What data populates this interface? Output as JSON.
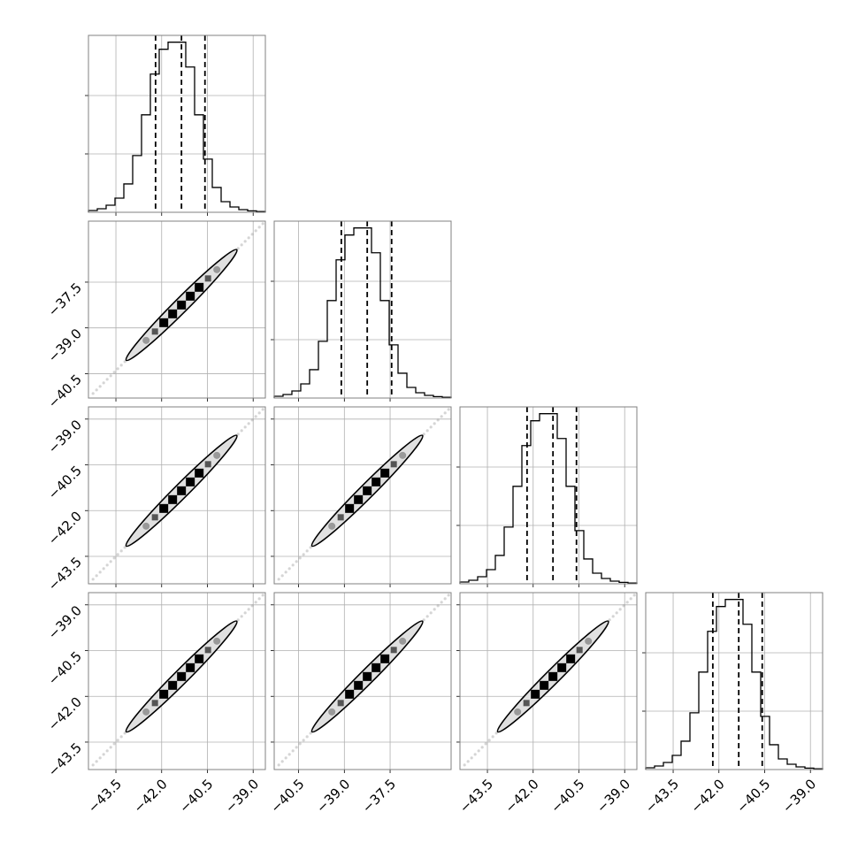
{
  "chart_data": {
    "type": "corner",
    "grid": true,
    "colors": {
      "line": "#000000",
      "grid": "#b0b0b0",
      "frame": "#808080",
      "contour_fill": "#e0e0e0",
      "samples": "#888888"
    },
    "params": [
      {
        "range": [
          -44.4,
          -38.6
        ],
        "ticks": [
          -43.5,
          -42.0,
          -40.5,
          -39.0
        ],
        "tick_labels": [
          "−43.5",
          "−42.0",
          "−40.5",
          "−39.0"
        ],
        "quantiles": [
          -42.2,
          -41.35,
          -40.58
        ],
        "histogram": [
          1,
          2,
          4,
          8,
          16,
          32,
          55,
          78,
          92,
          96,
          96,
          82,
          55,
          30,
          14,
          6,
          3,
          1.5,
          0.8,
          0.4
        ]
      },
      {
        "range": [
          -41.3,
          -35.5
        ],
        "ticks": [
          -40.5,
          -39.0,
          -37.5
        ],
        "tick_labels": [
          "−40.5",
          "−39.0",
          "−37.5"
        ],
        "quantiles": [
          -39.1,
          -38.25,
          -37.45
        ],
        "histogram": [
          1,
          2,
          4,
          8,
          16,
          32,
          55,
          78,
          92,
          96,
          96,
          82,
          55,
          30,
          14,
          6,
          3,
          1.5,
          0.8,
          0.4
        ]
      },
      {
        "range": [
          -44.4,
          -38.6
        ],
        "ticks": [
          -43.5,
          -42.0,
          -40.5,
          -39.0
        ],
        "tick_labels": [
          "−43.5",
          "−42.0",
          "−40.5",
          "−39.0"
        ],
        "quantiles": [
          -42.2,
          -41.35,
          -40.58
        ],
        "histogram": [
          1,
          2,
          4,
          8,
          16,
          32,
          55,
          78,
          92,
          96,
          96,
          82,
          55,
          30,
          14,
          6,
          3,
          1.5,
          0.8,
          0.4
        ]
      },
      {
        "range": [
          -44.4,
          -38.6
        ],
        "ticks": [
          -43.5,
          -42.0,
          -40.5,
          -39.0
        ],
        "tick_labels": [
          "−43.5",
          "−42.0",
          "−40.5",
          "−39.0"
        ],
        "quantiles": [
          -42.2,
          -41.35,
          -40.58
        ],
        "histogram": [
          1,
          2,
          4,
          8,
          16,
          32,
          55,
          78,
          92,
          96,
          96,
          82,
          55,
          30,
          14,
          6,
          3,
          1.5,
          0.8,
          0.4
        ]
      }
    ]
  }
}
